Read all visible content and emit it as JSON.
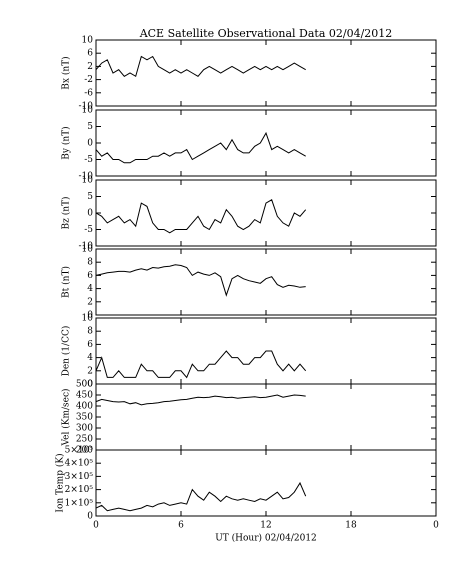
{
  "chart_data": [
    {
      "type": "line",
      "title": "ACE Satellite Observational Data   02/04/2012",
      "ylabel": "Bx (nT)",
      "x": [
        0,
        0.4,
        0.8,
        1.2,
        1.6,
        2,
        2.4,
        2.8,
        3.2,
        3.6,
        4,
        4.4,
        4.8,
        5.2,
        5.6,
        6,
        6.4,
        6.8,
        7.2,
        7.6,
        8,
        8.4,
        8.8,
        9.2,
        9.6,
        10,
        10.4,
        10.8,
        11.2,
        11.6,
        12,
        12.4,
        12.8,
        13.2,
        13.6,
        14,
        14.4,
        14.8
      ],
      "values": [
        1,
        3,
        4,
        0,
        1,
        -1,
        0,
        -1,
        5,
        4,
        5,
        2,
        1,
        0,
        1,
        0,
        1,
        0,
        -1,
        1,
        2,
        1,
        0,
        1,
        2,
        1,
        0,
        1,
        2,
        1,
        2,
        1,
        2,
        1,
        2,
        3,
        2,
        1
      ],
      "xlim": [
        0,
        24
      ],
      "ylim": [
        -10,
        10
      ],
      "yticks": [
        -10,
        -6,
        -2,
        2,
        6,
        10
      ],
      "color": "#000000"
    },
    {
      "type": "line",
      "ylabel": "By (nT)",
      "x": [
        0,
        0.4,
        0.8,
        1.2,
        1.6,
        2,
        2.4,
        2.8,
        3.2,
        3.6,
        4,
        4.4,
        4.8,
        5.2,
        5.6,
        6,
        6.4,
        6.8,
        7.2,
        7.6,
        8,
        8.4,
        8.8,
        9.2,
        9.6,
        10,
        10.4,
        10.8,
        11.2,
        11.6,
        12,
        12.4,
        12.8,
        13.2,
        13.6,
        14,
        14.4,
        14.8
      ],
      "values": [
        -2,
        -4,
        -3,
        -5,
        -5,
        -6,
        -6,
        -5,
        -5,
        -5,
        -4,
        -4,
        -3,
        -4,
        -3,
        -3,
        -2,
        -5,
        -4,
        -3,
        -2,
        -1,
        0,
        -2,
        1,
        -2,
        -3,
        -3,
        -1,
        0,
        3,
        -2,
        -1,
        -2,
        -3,
        -2,
        -3,
        -4
      ],
      "xlim": [
        0,
        24
      ],
      "ylim": [
        -10,
        10
      ],
      "yticks": [
        -10,
        -5,
        0,
        5,
        10
      ],
      "color": "#000000"
    },
    {
      "type": "line",
      "ylabel": "Bz (nT)",
      "x": [
        0,
        0.4,
        0.8,
        1.2,
        1.6,
        2,
        2.4,
        2.8,
        3.2,
        3.6,
        4,
        4.4,
        4.8,
        5.2,
        5.6,
        6,
        6.4,
        6.8,
        7.2,
        7.6,
        8,
        8.4,
        8.8,
        9.2,
        9.6,
        10,
        10.4,
        10.8,
        11.2,
        11.6,
        12,
        12.4,
        12.8,
        13.2,
        13.6,
        14,
        14.4,
        14.8
      ],
      "values": [
        0,
        -1,
        -3,
        -2,
        -1,
        -3,
        -2,
        -4,
        3,
        2,
        -3,
        -5,
        -5,
        -6,
        -5,
        -5,
        -5,
        -3,
        -1,
        -4,
        -5,
        -2,
        -3,
        1,
        -1,
        -4,
        -5,
        -4,
        -2,
        -3,
        3,
        4,
        -1,
        -3,
        -4,
        0,
        -1,
        1
      ],
      "xlim": [
        0,
        24
      ],
      "ylim": [
        -10,
        10
      ],
      "yticks": [
        -10,
        -5,
        0,
        5,
        10
      ],
      "color": "#000000"
    },
    {
      "type": "line",
      "ylabel": "Bt (nT)",
      "x": [
        0,
        0.4,
        0.8,
        1.2,
        1.6,
        2,
        2.4,
        2.8,
        3.2,
        3.6,
        4,
        4.4,
        4.8,
        5.2,
        5.6,
        6,
        6.4,
        6.8,
        7.2,
        7.6,
        8,
        8.4,
        8.8,
        9.2,
        9.6,
        10,
        10.4,
        10.8,
        11.2,
        11.6,
        12,
        12.4,
        12.8,
        13.2,
        13.6,
        14,
        14.4,
        14.8
      ],
      "values": [
        6,
        6.2,
        6.4,
        6.5,
        6.6,
        6.6,
        6.5,
        6.8,
        7,
        6.8,
        7.2,
        7.1,
        7.3,
        7.4,
        7.6,
        7.5,
        7.2,
        6,
        6.5,
        6.2,
        6,
        6.4,
        5.8,
        3,
        5.5,
        6,
        5.5,
        5.2,
        5,
        4.8,
        5.5,
        5.8,
        4.6,
        4.2,
        4.5,
        4.4,
        4.2,
        4.3
      ],
      "xlim": [
        0,
        24
      ],
      "ylim": [
        0,
        10
      ],
      "yticks": [
        0,
        2,
        4,
        6,
        8,
        10
      ],
      "color": "#000000"
    },
    {
      "type": "line",
      "ylabel": "Den (1/CC)",
      "x": [
        0,
        0.4,
        0.8,
        1.2,
        1.6,
        2,
        2.4,
        2.8,
        3.2,
        3.6,
        4,
        4.4,
        4.8,
        5.2,
        5.6,
        6,
        6.4,
        6.8,
        7.2,
        7.6,
        8,
        8.4,
        8.8,
        9.2,
        9.6,
        10,
        10.4,
        10.8,
        11.2,
        11.6,
        12,
        12.4,
        12.8,
        13.2,
        13.6,
        14,
        14.4,
        14.8
      ],
      "values": [
        2,
        4,
        1,
        1,
        2,
        1,
        1,
        1,
        3,
        2,
        2,
        1,
        1,
        1,
        2,
        2,
        1,
        3,
        2,
        2,
        3,
        3,
        4,
        5,
        4,
        4,
        3,
        3,
        4,
        4,
        5,
        5,
        3,
        2,
        3,
        2,
        3,
        2
      ],
      "xlim": [
        0,
        24
      ],
      "ylim": [
        0,
        10
      ],
      "yticks": [
        0,
        2,
        4,
        6,
        8,
        10
      ],
      "color": "#000000"
    },
    {
      "type": "line",
      "ylabel": "Vel (Km/sec)",
      "x": [
        0,
        0.4,
        0.8,
        1.2,
        1.6,
        2,
        2.4,
        2.8,
        3.2,
        3.6,
        4,
        4.4,
        4.8,
        5.2,
        5.6,
        6,
        6.4,
        6.8,
        7.2,
        7.6,
        8,
        8.4,
        8.8,
        9.2,
        9.6,
        10,
        10.4,
        10.8,
        11.2,
        11.6,
        12,
        12.4,
        12.8,
        13.2,
        13.6,
        14,
        14.4,
        14.8
      ],
      "values": [
        420,
        430,
        425,
        420,
        418,
        420,
        410,
        415,
        405,
        410,
        412,
        415,
        420,
        422,
        425,
        428,
        430,
        435,
        440,
        438,
        440,
        445,
        442,
        438,
        440,
        435,
        438,
        440,
        442,
        438,
        440,
        445,
        450,
        440,
        445,
        450,
        448,
        445
      ],
      "xlim": [
        0,
        24
      ],
      "ylim": [
        200,
        500
      ],
      "yticks": [
        200,
        250,
        300,
        350,
        400,
        450,
        500
      ],
      "color": "#000000"
    },
    {
      "type": "line",
      "ylabel": "Ion Temp (K)",
      "xlabel": "UT (Hour)   02/04/2012",
      "x": [
        0,
        0.4,
        0.8,
        1.2,
        1.6,
        2,
        2.4,
        2.8,
        3.2,
        3.6,
        4,
        4.4,
        4.8,
        5.2,
        5.6,
        6,
        6.4,
        6.8,
        7.2,
        7.6,
        8,
        8.4,
        8.8,
        9.2,
        9.6,
        10,
        10.4,
        10.8,
        11.2,
        11.6,
        12,
        12.4,
        12.8,
        13.2,
        13.6,
        14,
        14.4,
        14.8
      ],
      "values": [
        60000,
        80000,
        40000,
        50000,
        60000,
        50000,
        40000,
        50000,
        60000,
        80000,
        70000,
        90000,
        100000,
        80000,
        90000,
        100000,
        90000,
        200000,
        150000,
        120000,
        180000,
        150000,
        110000,
        150000,
        130000,
        120000,
        130000,
        120000,
        110000,
        130000,
        120000,
        150000,
        180000,
        130000,
        140000,
        180000,
        250000,
        150000
      ],
      "xlim": [
        0,
        24
      ],
      "ylim": [
        0,
        500000
      ],
      "yticks": [
        0,
        {
          "value": 100000,
          "label": "1×10⁵"
        },
        {
          "value": 200000,
          "label": "2×10⁵"
        },
        {
          "value": 300000,
          "label": "3×10⁵"
        },
        {
          "value": 400000,
          "label": "4×10⁵"
        },
        {
          "value": 500000,
          "label": "5×10⁵"
        }
      ],
      "xticks": [
        0,
        6,
        12,
        18,
        {
          "value": 24,
          "label": "0"
        }
      ],
      "color": "#000000"
    }
  ]
}
